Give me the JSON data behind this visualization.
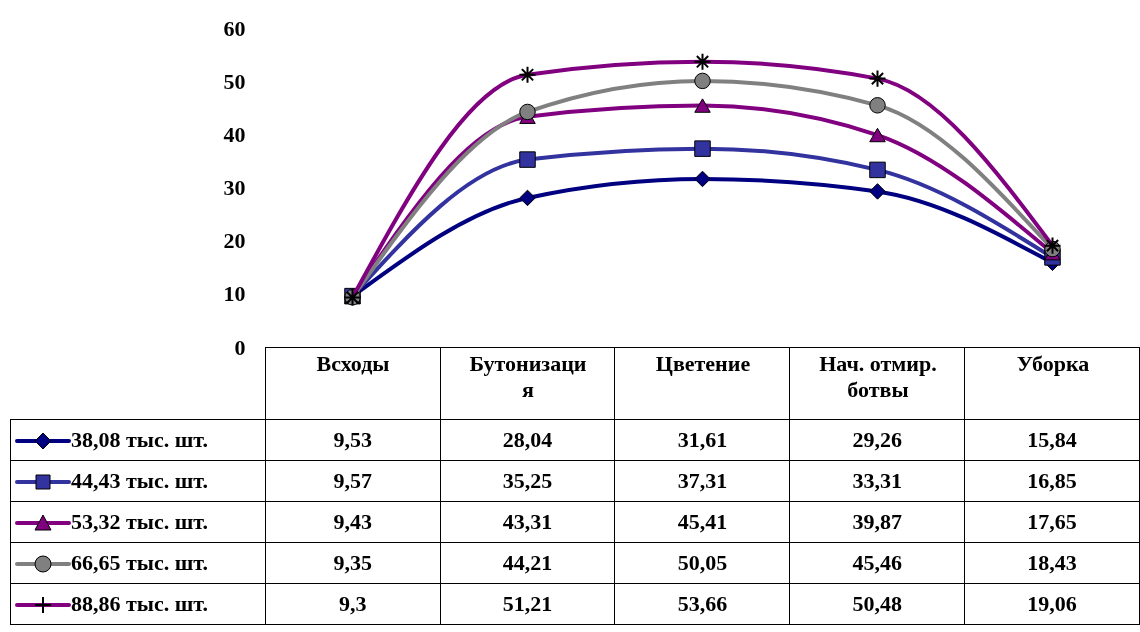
{
  "chart_data": {
    "type": "line",
    "categories": [
      "Всходы",
      "Бутонизация",
      "Цветение",
      "Нач. отмир. ботвы",
      "Уборка"
    ],
    "series": [
      {
        "name": "38,08 тыс. шт.",
        "color": "#000080",
        "marker": "diamond",
        "values": [
          9.53,
          28.04,
          31.61,
          29.26,
          15.84
        ],
        "value_labels": [
          "9,53",
          "28,04",
          "31,61",
          "29,26",
          "15,84"
        ]
      },
      {
        "name": "44,43 тыс. шт.",
        "color": "#3333a0",
        "marker": "square",
        "values": [
          9.57,
          35.25,
          37.31,
          33.31,
          16.85
        ],
        "value_labels": [
          "9,57",
          "35,25",
          "37,31",
          "33,31",
          "16,85"
        ]
      },
      {
        "name": "53,32 тыс. шт.",
        "color": "#800080",
        "marker": "triangle",
        "values": [
          9.43,
          43.31,
          45.41,
          39.87,
          17.65
        ],
        "value_labels": [
          "9,43",
          "43,31",
          "45,41",
          "39,87",
          "17,65"
        ]
      },
      {
        "name": "66,65 тыс. шт.",
        "color": "#808080",
        "marker": "circle",
        "values": [
          9.35,
          44.21,
          50.05,
          45.46,
          18.43
        ],
        "value_labels": [
          "9,35",
          "44,21",
          "50,05",
          "45,46",
          "18,43"
        ]
      },
      {
        "name": "88,86 тыс. шт.",
        "color": "#800080",
        "marker": "cross",
        "values": [
          9.3,
          51.21,
          53.66,
          50.48,
          19.06
        ],
        "value_labels": [
          "9,3",
          "51,21",
          "53,66",
          "50,48",
          "19,06"
        ]
      }
    ],
    "ylim": [
      0,
      60
    ],
    "yticks": [
      0,
      10,
      20,
      30,
      40,
      50,
      60
    ],
    "grid": false,
    "legend": "bottom",
    "line_style": "solid"
  }
}
